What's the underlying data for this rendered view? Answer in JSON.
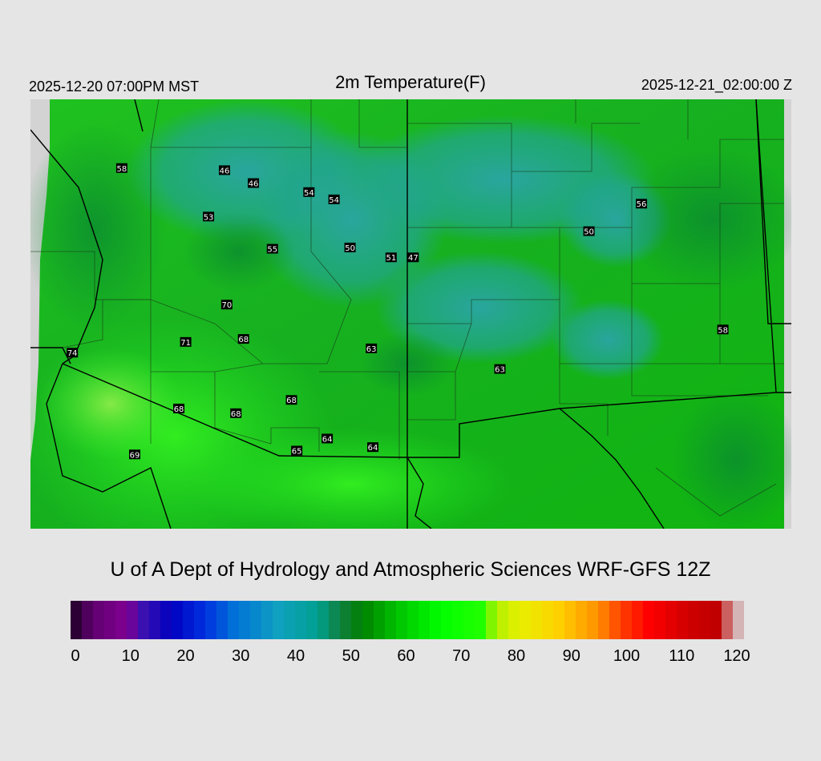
{
  "header": {
    "valid_local": "2025-12-20 07:00PM MST",
    "title": "2m Temperature(F)",
    "valid_utc": "2025-12-21_02:00:00 Z"
  },
  "attribution": "U of A Dept of Hydrology and Atmospheric Sciences WRF-GFS 12Z",
  "colorbar": {
    "min": 0,
    "max": 120,
    "tick_labels": [
      "0",
      "10",
      "20",
      "30",
      "40",
      "50",
      "60",
      "70",
      "80",
      "90",
      "100",
      "110",
      "120"
    ],
    "stops": [
      {
        "value": 0,
        "color": "#1a0020"
      },
      {
        "value": 4,
        "color": "#600070"
      },
      {
        "value": 10,
        "color": "#800090"
      },
      {
        "value": 13,
        "color": "#3a10b0"
      },
      {
        "value": 18,
        "color": "#0000c0"
      },
      {
        "value": 24,
        "color": "#0030e0"
      },
      {
        "value": 29,
        "color": "#0070d8"
      },
      {
        "value": 37,
        "color": "#10a0c0"
      },
      {
        "value": 44,
        "color": "#00a090"
      },
      {
        "value": 48,
        "color": "#108040"
      },
      {
        "value": 52,
        "color": "#008000"
      },
      {
        "value": 58,
        "color": "#00c000"
      },
      {
        "value": 66,
        "color": "#00ff00"
      },
      {
        "value": 73,
        "color": "#20ff00"
      },
      {
        "value": 76,
        "color": "#b0f000"
      },
      {
        "value": 80,
        "color": "#e8f000"
      },
      {
        "value": 87,
        "color": "#ffd000"
      },
      {
        "value": 94,
        "color": "#ff9000"
      },
      {
        "value": 98,
        "color": "#ff4000"
      },
      {
        "value": 103,
        "color": "#ff0000"
      },
      {
        "value": 110,
        "color": "#d00000"
      },
      {
        "value": 115,
        "color": "#c00000"
      },
      {
        "value": 118,
        "color": "#d09090"
      },
      {
        "value": 120,
        "color": "#d8d8d8"
      }
    ]
  },
  "map": {
    "station_values": [
      {
        "value": "58",
        "lon": 0.12,
        "lat": 0.16
      },
      {
        "value": "46",
        "lon": 0.255,
        "lat": 0.165
      },
      {
        "value": "46",
        "lon": 0.293,
        "lat": 0.195
      },
      {
        "value": "54",
        "lon": 0.366,
        "lat": 0.216
      },
      {
        "value": "54",
        "lon": 0.399,
        "lat": 0.233
      },
      {
        "value": "53",
        "lon": 0.234,
        "lat": 0.273
      },
      {
        "value": "56",
        "lon": 0.803,
        "lat": 0.243
      },
      {
        "value": "50",
        "lon": 0.734,
        "lat": 0.307
      },
      {
        "value": "55",
        "lon": 0.318,
        "lat": 0.348
      },
      {
        "value": "50",
        "lon": 0.42,
        "lat": 0.345
      },
      {
        "value": "51",
        "lon": 0.474,
        "lat": 0.368
      },
      {
        "value": "47",
        "lon": 0.503,
        "lat": 0.368
      },
      {
        "value": "70",
        "lon": 0.258,
        "lat": 0.478
      },
      {
        "value": "71",
        "lon": 0.204,
        "lat": 0.565
      },
      {
        "value": "68",
        "lon": 0.28,
        "lat": 0.558
      },
      {
        "value": "74",
        "lon": 0.055,
        "lat": 0.59
      },
      {
        "value": "63",
        "lon": 0.448,
        "lat": 0.58
      },
      {
        "value": "58",
        "lon": 0.91,
        "lat": 0.536
      },
      {
        "value": "63",
        "lon": 0.617,
        "lat": 0.628
      },
      {
        "value": "68",
        "lon": 0.343,
        "lat": 0.7
      },
      {
        "value": "68",
        "lon": 0.195,
        "lat": 0.72
      },
      {
        "value": "68",
        "lon": 0.27,
        "lat": 0.731
      },
      {
        "value": "64",
        "lon": 0.39,
        "lat": 0.79
      },
      {
        "value": "64",
        "lon": 0.45,
        "lat": 0.81
      },
      {
        "value": "65",
        "lon": 0.35,
        "lat": 0.818
      },
      {
        "value": "69",
        "lon": 0.137,
        "lat": 0.827
      }
    ]
  }
}
